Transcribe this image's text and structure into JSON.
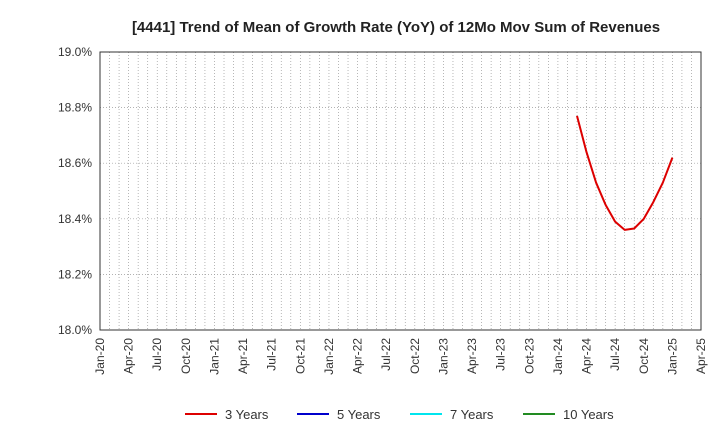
{
  "chart_data": {
    "type": "line",
    "title": "[4441]  Trend of Mean of Growth Rate (YoY) of 12Mo Mov Sum of Revenues",
    "xlabel": "",
    "ylabel": "",
    "ylim": [
      18.0,
      19.0
    ],
    "y_ticks": [
      "18.0%",
      "18.2%",
      "18.4%",
      "18.6%",
      "18.8%",
      "19.0%"
    ],
    "x_range": [
      "2020-01",
      "2025-04"
    ],
    "x_ticks": [
      "Jan-20",
      "Apr-20",
      "Jul-20",
      "Oct-20",
      "Jan-21",
      "Apr-21",
      "Jul-21",
      "Oct-21",
      "Jan-22",
      "Apr-22",
      "Jul-22",
      "Oct-22",
      "Jan-23",
      "Apr-23",
      "Jul-23",
      "Oct-23",
      "Jan-24",
      "Apr-24",
      "Jul-24",
      "Oct-24",
      "Jan-25",
      "Apr-25"
    ],
    "grid": true,
    "legend_position": "bottom",
    "series": [
      {
        "name": "3 Years",
        "color": "#dd0000",
        "points": [
          [
            "2024-03",
            18.77
          ],
          [
            "2024-04",
            18.64
          ],
          [
            "2024-05",
            18.53
          ],
          [
            "2024-06",
            18.45
          ],
          [
            "2024-07",
            18.39
          ],
          [
            "2024-08",
            18.36
          ],
          [
            "2024-09",
            18.365
          ],
          [
            "2024-10",
            18.4
          ],
          [
            "2024-11",
            18.46
          ],
          [
            "2024-12",
            18.53
          ],
          [
            "2025-01",
            18.62
          ]
        ]
      },
      {
        "name": "5 Years",
        "color": "#0000cc",
        "points": []
      },
      {
        "name": "7 Years",
        "color": "#00e5ee",
        "points": []
      },
      {
        "name": "10 Years",
        "color": "#228b22",
        "points": []
      }
    ]
  }
}
